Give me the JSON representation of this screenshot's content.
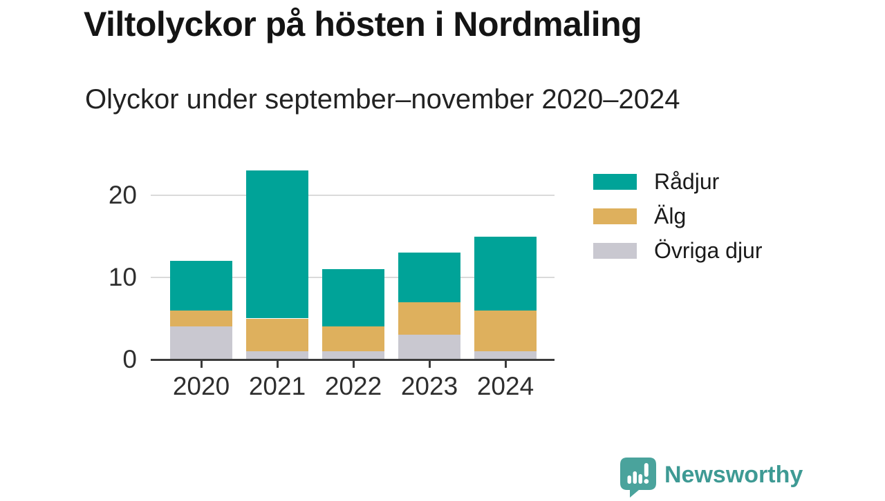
{
  "chart_data": {
    "type": "bar",
    "stacked": true,
    "title": "Viltolyckor på hösten i Nordmaling",
    "subtitle": "Olyckor under september–november 2020–2024",
    "categories": [
      "2020",
      "2021",
      "2022",
      "2023",
      "2024"
    ],
    "series": [
      {
        "name": "Rådjur",
        "color": "#00a398",
        "values": [
          6,
          18,
          7,
          6,
          9
        ]
      },
      {
        "name": "Älg",
        "color": "#deb05d",
        "values": [
          2,
          4,
          3,
          4,
          5
        ]
      },
      {
        "name": "Övriga djur",
        "color": "#c9c8d0",
        "values": [
          4,
          1,
          1,
          3,
          1
        ]
      }
    ],
    "stack_order_bottom_to_top": [
      "Övriga djur",
      "Älg",
      "Rådjur"
    ],
    "stack_totals": [
      12,
      23,
      11,
      13,
      15
    ],
    "yticks": [
      0,
      10,
      20
    ],
    "ylim": [
      0,
      23
    ],
    "xlabel": "",
    "ylabel": "",
    "grid": true,
    "legend_position": "right"
  },
  "footer": {
    "brand": "Newsworthy"
  },
  "icons": {
    "brand_logo": "newsworthy-speech-bubble-bar-chart-icon"
  },
  "colors": {
    "axis": "#3b3b3b",
    "gridline": "#dadada",
    "text": "#141414",
    "brand_bubble": "#4aa39c",
    "brand_text": "#3e9a94"
  }
}
